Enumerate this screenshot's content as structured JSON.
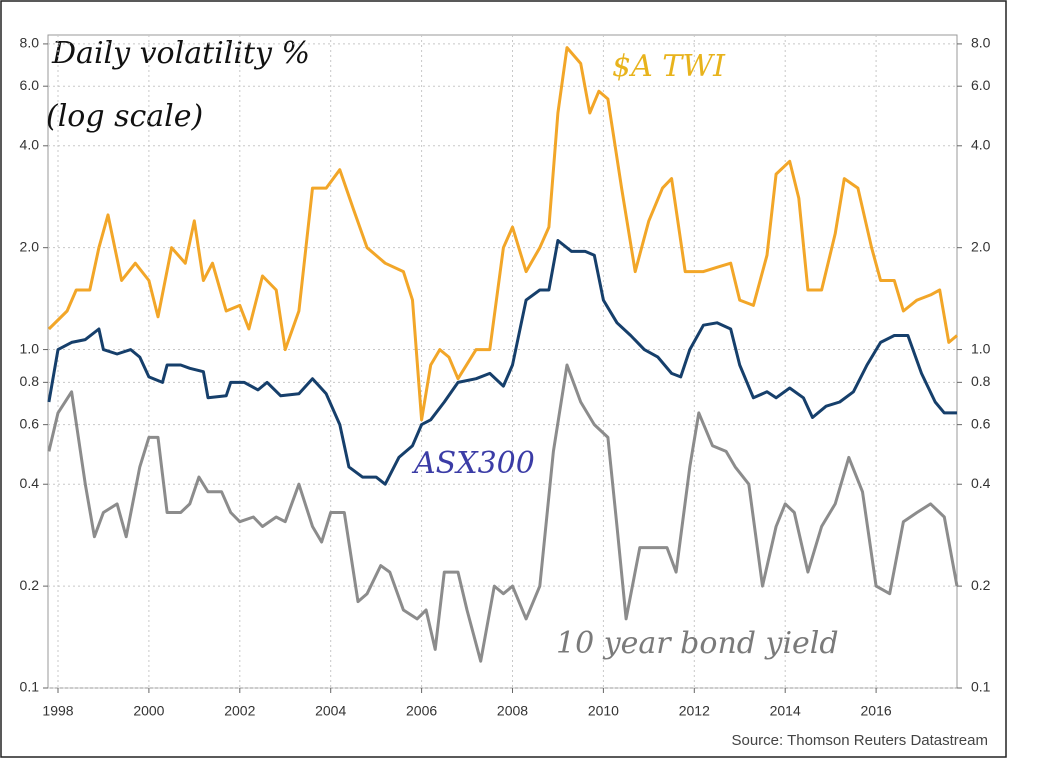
{
  "chart_data": {
    "type": "line",
    "title": "Daily volatility %",
    "subtitle": "(log scale)",
    "source": "Source: Thomson Reuters Datastream",
    "log_scale": true,
    "grid": true,
    "xlim": [
      1997.78,
      2017.78
    ],
    "xticks": [
      1998,
      2000,
      2002,
      2004,
      2006,
      2008,
      2010,
      2012,
      2014,
      2016
    ],
    "ylim": [
      0.1,
      8.5
    ],
    "yticks": [
      {
        "value": 8,
        "label": "8.0"
      },
      {
        "value": 6,
        "label": "6.0"
      },
      {
        "value": 4,
        "label": "4.0"
      },
      {
        "value": 2,
        "label": "2.0"
      },
      {
        "value": 1,
        "label": "1.0"
      },
      0.8,
      0.6,
      0.4,
      0.2,
      0.1
    ],
    "series": [
      {
        "name": "$A TWI",
        "color": "#f2a628",
        "x": [
          1997.8,
          1998.2,
          1998.4,
          1998.7,
          1998.9,
          1999.1,
          1999.4,
          1999.7,
          2000.0,
          2000.2,
          2000.5,
          2000.8,
          2001.0,
          2001.2,
          2001.4,
          2001.7,
          2002.0,
          2002.2,
          2002.5,
          2002.8,
          2003.0,
          2003.3,
          2003.6,
          2003.9,
          2004.2,
          2004.5,
          2004.8,
          2005.2,
          2005.6,
          2005.8,
          2006.0,
          2006.2,
          2006.4,
          2006.6,
          2006.8,
          2007.2,
          2007.5,
          2007.8,
          2008.0,
          2008.3,
          2008.6,
          2008.8,
          2009.0,
          2009.2,
          2009.5,
          2009.7,
          2009.9,
          2010.1,
          2010.4,
          2010.7,
          2011.0,
          2011.3,
          2011.5,
          2011.8,
          2012.2,
          2012.5,
          2012.8,
          2013.0,
          2013.3,
          2013.6,
          2013.8,
          2014.1,
          2014.3,
          2014.5,
          2014.8,
          2015.1,
          2015.3,
          2015.6,
          2015.9,
          2016.1,
          2016.4,
          2016.6,
          2016.9,
          2017.2,
          2017.4,
          2017.6,
          2017.78
        ],
        "values": [
          1.15,
          1.3,
          1.5,
          1.5,
          2.0,
          2.5,
          1.6,
          1.8,
          1.6,
          1.25,
          2.0,
          1.8,
          2.4,
          1.6,
          1.8,
          1.3,
          1.35,
          1.15,
          1.65,
          1.5,
          1.0,
          1.3,
          3.0,
          3.0,
          3.4,
          2.6,
          2.0,
          1.8,
          1.7,
          1.4,
          0.62,
          0.9,
          1.0,
          0.95,
          0.82,
          1.0,
          1.0,
          2.0,
          2.3,
          1.7,
          2.0,
          2.3,
          5.0,
          7.8,
          7.0,
          5.0,
          5.8,
          5.5,
          3.0,
          1.7,
          2.4,
          3.0,
          3.2,
          1.7,
          1.7,
          1.75,
          1.8,
          1.4,
          1.35,
          1.9,
          3.3,
          3.6,
          2.8,
          1.5,
          1.5,
          2.2,
          3.2,
          3.0,
          2.0,
          1.6,
          1.6,
          1.3,
          1.4,
          1.45,
          1.5,
          1.05,
          1.1
        ]
      },
      {
        "name": "ASX300",
        "color": "#163f6b",
        "x": [
          1997.8,
          1998.0,
          1998.3,
          1998.6,
          1998.9,
          1999.0,
          1999.3,
          1999.6,
          1999.8,
          2000.0,
          2000.3,
          2000.4,
          2000.7,
          2000.9,
          2001.2,
          2001.3,
          2001.7,
          2001.8,
          2002.1,
          2002.4,
          2002.6,
          2002.9,
          2003.3,
          2003.6,
          2003.9,
          2004.2,
          2004.4,
          2004.7,
          2005.0,
          2005.2,
          2005.5,
          2005.8,
          2006.0,
          2006.2,
          2006.5,
          2006.8,
          2007.2,
          2007.5,
          2007.8,
          2008.0,
          2008.3,
          2008.6,
          2008.8,
          2009.0,
          2009.3,
          2009.6,
          2009.8,
          2010.0,
          2010.3,
          2010.6,
          2010.9,
          2011.2,
          2011.5,
          2011.7,
          2011.9,
          2012.2,
          2012.5,
          2012.8,
          2013.0,
          2013.3,
          2013.6,
          2013.8,
          2014.1,
          2014.4,
          2014.6,
          2014.9,
          2015.2,
          2015.5,
          2015.8,
          2016.1,
          2016.4,
          2016.7,
          2017.0,
          2017.3,
          2017.5,
          2017.78
        ],
        "values": [
          0.7,
          1.0,
          1.05,
          1.07,
          1.15,
          1.0,
          0.97,
          1.0,
          0.95,
          0.83,
          0.8,
          0.9,
          0.9,
          0.88,
          0.86,
          0.72,
          0.73,
          0.8,
          0.8,
          0.76,
          0.8,
          0.73,
          0.74,
          0.82,
          0.74,
          0.6,
          0.45,
          0.42,
          0.42,
          0.4,
          0.48,
          0.52,
          0.6,
          0.62,
          0.7,
          0.8,
          0.82,
          0.85,
          0.78,
          0.9,
          1.4,
          1.5,
          1.5,
          2.1,
          1.95,
          1.95,
          1.9,
          1.4,
          1.2,
          1.1,
          1.0,
          0.95,
          0.85,
          0.83,
          1.0,
          1.18,
          1.2,
          1.15,
          0.9,
          0.72,
          0.75,
          0.72,
          0.77,
          0.72,
          0.63,
          0.68,
          0.7,
          0.75,
          0.9,
          1.05,
          1.1,
          1.1,
          0.85,
          0.7,
          0.65,
          0.65
        ]
      },
      {
        "name": "10 year bond yield",
        "color": "#8c8c8c",
        "x": [
          1997.8,
          1998.0,
          1998.3,
          1998.6,
          1998.8,
          1999.0,
          1999.3,
          1999.5,
          1999.8,
          2000.0,
          2000.2,
          2000.4,
          2000.7,
          2000.9,
          2001.1,
          2001.3,
          2001.6,
          2001.8,
          2002.0,
          2002.3,
          2002.5,
          2002.8,
          2003.0,
          2003.3,
          2003.6,
          2003.8,
          2004.0,
          2004.3,
          2004.6,
          2004.8,
          2005.1,
          2005.3,
          2005.6,
          2005.9,
          2006.1,
          2006.3,
          2006.5,
          2006.8,
          2007.0,
          2007.3,
          2007.6,
          2007.8,
          2008.0,
          2008.3,
          2008.6,
          2008.9,
          2009.2,
          2009.5,
          2009.8,
          2010.1,
          2010.3,
          2010.5,
          2010.8,
          2011.1,
          2011.4,
          2011.6,
          2011.9,
          2012.1,
          2012.4,
          2012.7,
          2012.9,
          2013.2,
          2013.5,
          2013.8,
          2014.0,
          2014.2,
          2014.5,
          2014.8,
          2015.1,
          2015.4,
          2015.7,
          2016.0,
          2016.3,
          2016.6,
          2016.9,
          2017.2,
          2017.5,
          2017.78
        ],
        "values": [
          0.5,
          0.65,
          0.75,
          0.4,
          0.28,
          0.33,
          0.35,
          0.28,
          0.45,
          0.55,
          0.55,
          0.33,
          0.33,
          0.35,
          0.42,
          0.38,
          0.38,
          0.33,
          0.31,
          0.32,
          0.3,
          0.32,
          0.31,
          0.4,
          0.3,
          0.27,
          0.33,
          0.33,
          0.18,
          0.19,
          0.23,
          0.22,
          0.17,
          0.16,
          0.17,
          0.13,
          0.22,
          0.22,
          0.17,
          0.12,
          0.2,
          0.19,
          0.2,
          0.16,
          0.2,
          0.5,
          0.9,
          0.7,
          0.6,
          0.55,
          0.3,
          0.16,
          0.26,
          0.26,
          0.26,
          0.22,
          0.45,
          0.65,
          0.52,
          0.5,
          0.45,
          0.4,
          0.2,
          0.3,
          0.35,
          0.33,
          0.22,
          0.3,
          0.35,
          0.48,
          0.38,
          0.2,
          0.19,
          0.31,
          0.33,
          0.35,
          0.32,
          0.2
        ]
      }
    ]
  }
}
